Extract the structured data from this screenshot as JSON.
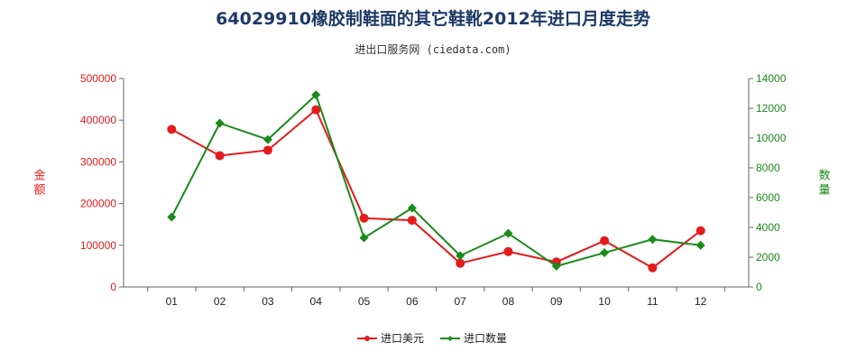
{
  "title": "64029910橡胶制鞋面的其它鞋靴2012年进口月度走势",
  "subtitle": "进出口服务网 (ciedata.com)",
  "chart_data": {
    "type": "line",
    "categories": [
      "01",
      "02",
      "03",
      "04",
      "05",
      "06",
      "07",
      "08",
      "09",
      "10",
      "11",
      "12"
    ],
    "series": [
      {
        "name": "进口美元",
        "axis": "left",
        "color": "#e41a1c",
        "values": [
          378000,
          315000,
          328000,
          425000,
          165000,
          160000,
          57000,
          85000,
          60000,
          111000,
          46000,
          135000
        ]
      },
      {
        "name": "进口数量",
        "axis": "right",
        "color": "#1a8a1a",
        "values": [
          4700,
          11000,
          9900,
          12900,
          3300,
          5300,
          2100,
          3600,
          1400,
          2300,
          3200,
          2800
        ]
      }
    ],
    "y_left": {
      "label": "金额",
      "min": 0,
      "max": 500000,
      "ticks": [
        "0",
        "100000",
        "200000",
        "300000",
        "400000",
        "500000"
      ],
      "color": "#e41a1c"
    },
    "y_right": {
      "label": "数量",
      "min": 0,
      "max": 14000,
      "ticks": [
        "0",
        "2000",
        "4000",
        "6000",
        "8000",
        "10000",
        "12000",
        "14000"
      ],
      "color": "#1a8a1a"
    },
    "legend_position": "bottom-center",
    "grid": false
  }
}
